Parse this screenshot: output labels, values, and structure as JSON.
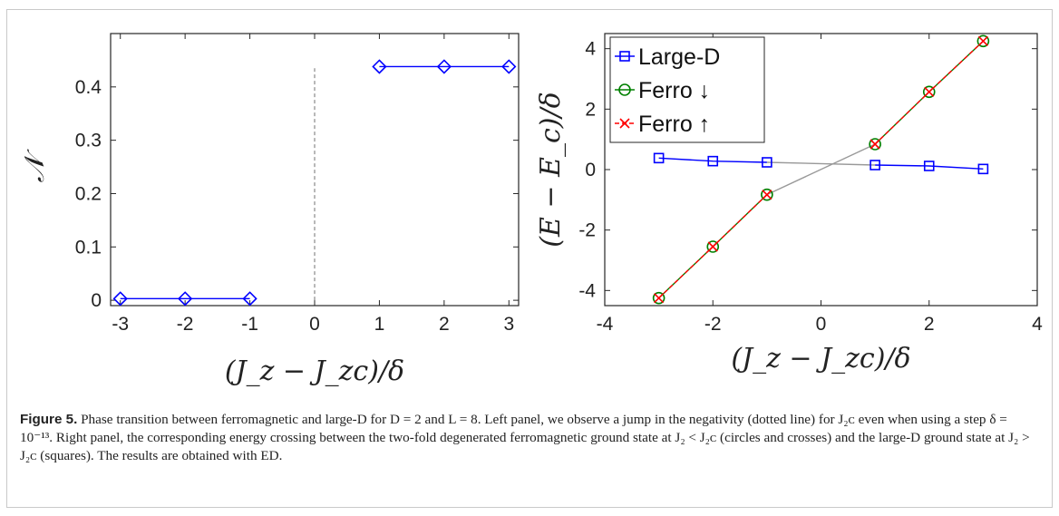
{
  "chart_data": [
    {
      "type": "line",
      "ylabel": "𝒩",
      "xlabel": "(J_z − J_zc)/δ",
      "xlim": [
        -3.15,
        3.15
      ],
      "ylim": [
        -0.01,
        0.5
      ],
      "xticks": [
        "-3",
        "-2",
        "-1",
        "0",
        "1",
        "2",
        "3"
      ],
      "yticks": [
        "0",
        "0.1",
        "0.2",
        "0.3",
        "0.4"
      ],
      "grid": false,
      "marker": "diamond",
      "color": "#0000ff",
      "series": [
        {
          "x": [
            -3,
            -2,
            -1
          ],
          "values": [
            0.003,
            0.003,
            0.003
          ]
        },
        {
          "x": [
            1,
            2,
            3
          ],
          "values": [
            0.438,
            0.438,
            0.438
          ]
        }
      ],
      "vline": {
        "x": 0,
        "ymin": 0,
        "ymax": 0.435,
        "style": "dashed",
        "color": "#888888"
      }
    },
    {
      "type": "line",
      "ylabel": "(E − E_c)/δ",
      "xlabel": "(J_z − J_zc)/δ",
      "xlim": [
        -4,
        4
      ],
      "ylim": [
        -4.5,
        4.5
      ],
      "xticks": [
        "-4",
        "-2",
        "0",
        "2",
        "4"
      ],
      "yticks": [
        "-4",
        "-2",
        "0",
        "2",
        "4"
      ],
      "grid": false,
      "legend_position": "top-left",
      "series": [
        {
          "name": "Large-D",
          "marker": "square",
          "color": "#0000ff",
          "x": [
            -3,
            -2,
            -1,
            1,
            2,
            3
          ],
          "values": [
            0.38,
            0.28,
            0.24,
            0.15,
            0.12,
            0.02
          ]
        },
        {
          "name": "Ferro ↓",
          "marker": "circle",
          "color": "#008000",
          "x": [
            -3,
            -2,
            -1,
            1,
            2,
            3
          ],
          "values": [
            -4.25,
            -2.55,
            -0.83,
            0.84,
            2.57,
            4.25
          ]
        },
        {
          "name": "Ferro ↑",
          "marker": "cross",
          "color": "#ff0000",
          "dashed": true,
          "x": [
            -3,
            -2,
            -1,
            1,
            2,
            3
          ],
          "values": [
            -4.25,
            -2.55,
            -0.83,
            0.84,
            2.57,
            4.25
          ]
        }
      ],
      "connectors": {
        "color": "#999999"
      }
    }
  ],
  "caption": {
    "lead": "Figure 5.",
    "text": " Phase transition between ferromagnetic and large-D for D = 2 and L = 8. Left panel, we observe a jump in the negativity (dotted line) for J₂ᴄ even when using a step δ = 10⁻¹³. Right panel, the corresponding energy crossing between the two-fold degenerated ferromagnetic ground state at J₂ < J₂ᴄ (circles and crosses) and the large-D ground state at J₂ > J₂ᴄ (squares). The results are obtained with ED."
  }
}
